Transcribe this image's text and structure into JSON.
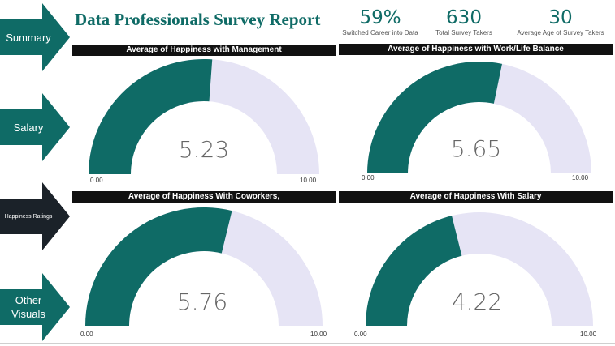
{
  "nav": [
    {
      "label": "Summary",
      "color": "#0f6b66"
    },
    {
      "label": "Salary",
      "color": "#0f6b66"
    },
    {
      "label": "Happiness Ratings",
      "color": "#1b2229"
    },
    {
      "label": "Other Visuals",
      "color": "#0f6b66"
    }
  ],
  "title": "Data Professionals Survey Report",
  "kpis": [
    {
      "value": "59%",
      "label": "Switched Career into Data"
    },
    {
      "value": "630",
      "label": "Total Survey Takers"
    },
    {
      "value": "30",
      "label": "Average Age of Survey Takers"
    }
  ],
  "colors": {
    "fill": "#0f6b66",
    "track": "#e6e4f5",
    "header": "#111111"
  },
  "gauges": [
    {
      "title": "Average of Happiness with Management",
      "value": 5.23,
      "display": "5.23",
      "min": 0,
      "max": 10,
      "min_label": "0.00",
      "max_label": "10.00"
    },
    {
      "title": "Average of Happiness with Work/Life Balance",
      "value": 5.65,
      "display": "5.65",
      "min": 0,
      "max": 10,
      "min_label": "0.00",
      "max_label": "10.00"
    },
    {
      "title": "Average of Happiness With Coworkers,",
      "value": 5.76,
      "display": "5.76",
      "min": 0,
      "max": 10,
      "min_label": "0.00",
      "max_label": "10.00"
    },
    {
      "title": "Average of Happiness With Salary",
      "value": 4.22,
      "display": "4.22",
      "min": 0,
      "max": 10,
      "min_label": "0.00",
      "max_label": "10.00"
    }
  ]
}
